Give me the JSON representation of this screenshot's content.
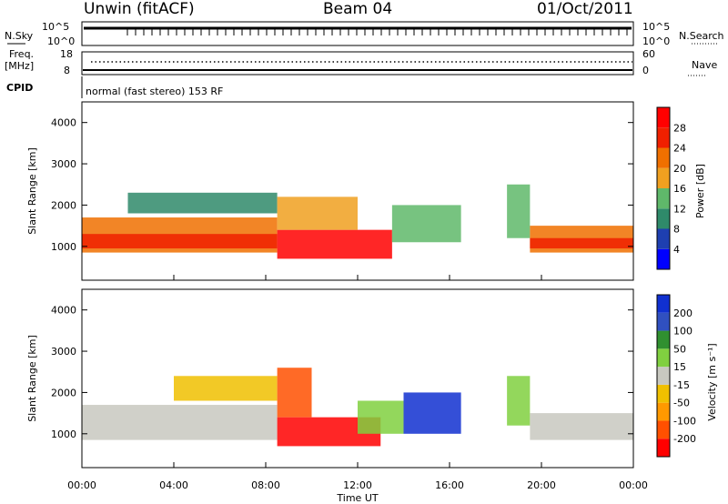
{
  "header": {
    "station": "Unwin (fitACF)",
    "beam": "Beam 04",
    "date": "01/Oct/2011"
  },
  "strips": {
    "nsky_label": "N.Sky",
    "nsky_ticks": [
      "10^5",
      "10^0"
    ],
    "nsearch_label": "N.Search",
    "freq_label_1": "Freq.",
    "freq_label_2": "[MHz]",
    "freq_ticks": [
      "18",
      "8"
    ],
    "nave_ticks": [
      "60",
      "0"
    ],
    "nave_label": "Nave",
    "cpid_label": "CPID",
    "cpid_text": "normal (fast stereo) 153 RF"
  },
  "colors": {
    "power_scale": [
      "#0000ff",
      "#1e3fb0",
      "#2f8a6a",
      "#5fb86a",
      "#f0a020",
      "#f07000",
      "#f02000",
      "#ff0000"
    ],
    "velocity_scale": [
      "#ff0000",
      "#ff5000",
      "#ff9900",
      "#f0c000",
      "#c8c8c0",
      "#80d040",
      "#309030",
      "#3050c0",
      "#1030d0"
    ]
  },
  "chart_data": [
    {
      "type": "heatmap",
      "panel": "power",
      "ylabel": "Slant Range [km]",
      "ylim": [
        180,
        4500
      ],
      "yticks": [
        1000,
        2000,
        3000,
        4000
      ],
      "xlabel": "Time UT",
      "xticks": [
        "00:00",
        "04:00",
        "08:00",
        "12:00",
        "16:00",
        "20:00",
        "00:00"
      ],
      "colorbar_label": "Power [dB]",
      "colorbar_ticks": [
        "28",
        "24",
        "20",
        "16",
        "12",
        "8",
        "4"
      ],
      "colorbar_range": [
        0,
        32
      ],
      "regions": [
        {
          "t_start": 0,
          "t_end": 8.5,
          "r_low": 850,
          "r_high": 1700,
          "value": 20
        },
        {
          "t_start": 0,
          "t_end": 8.5,
          "r_low": 950,
          "r_high": 1300,
          "value": 27
        },
        {
          "t_start": 2,
          "t_end": 8.5,
          "r_low": 1800,
          "r_high": 2300,
          "value": 10
        },
        {
          "t_start": 8.5,
          "t_end": 13.5,
          "r_low": 700,
          "r_high": 1400,
          "value": 30
        },
        {
          "t_start": 8.5,
          "t_end": 12,
          "r_low": 1400,
          "r_high": 2200,
          "value": 16
        },
        {
          "t_start": 13.5,
          "t_end": 16.5,
          "r_low": 1100,
          "r_high": 2000,
          "value": 14
        },
        {
          "t_start": 18.5,
          "t_end": 19.5,
          "r_low": 1200,
          "r_high": 2500,
          "value": 12
        },
        {
          "t_start": 19.5,
          "t_end": 24,
          "r_low": 850,
          "r_high": 1500,
          "value": 22
        },
        {
          "t_start": 19.5,
          "t_end": 24,
          "r_low": 950,
          "r_high": 1200,
          "value": 27
        }
      ]
    },
    {
      "type": "heatmap",
      "panel": "velocity",
      "ylabel": "Slant Range [km]",
      "ylim": [
        180,
        4500
      ],
      "yticks": [
        1000,
        2000,
        3000,
        4000
      ],
      "xlabel": "Time UT",
      "xticks": [
        "00:00",
        "04:00",
        "08:00",
        "12:00",
        "16:00",
        "20:00",
        "00:00"
      ],
      "colorbar_label": "Velocity [m s⁻¹]",
      "colorbar_ticks": [
        "200",
        "100",
        "50",
        "15",
        "-15",
        "-50",
        "-100",
        "-200"
      ],
      "colorbar_range": [
        -250,
        250
      ],
      "regions": [
        {
          "t_start": 0,
          "t_end": 8.5,
          "r_low": 850,
          "r_high": 1700,
          "value": 0
        },
        {
          "t_start": 4,
          "t_end": 8.5,
          "r_low": 1800,
          "r_high": 2400,
          "value": -60
        },
        {
          "t_start": 8.5,
          "t_end": 13,
          "r_low": 700,
          "r_high": 1400,
          "value": -220
        },
        {
          "t_start": 8.5,
          "t_end": 10,
          "r_low": 1400,
          "r_high": 2600,
          "value": -180
        },
        {
          "t_start": 12,
          "t_end": 14,
          "r_low": 1000,
          "r_high": 1800,
          "value": 60
        },
        {
          "t_start": 14,
          "t_end": 16.5,
          "r_low": 1000,
          "r_high": 2000,
          "value": 200
        },
        {
          "t_start": 18.5,
          "t_end": 19.5,
          "r_low": 1200,
          "r_high": 2400,
          "value": 60
        },
        {
          "t_start": 19.5,
          "t_end": 24,
          "r_low": 850,
          "r_high": 1500,
          "value": 0
        }
      ]
    }
  ]
}
